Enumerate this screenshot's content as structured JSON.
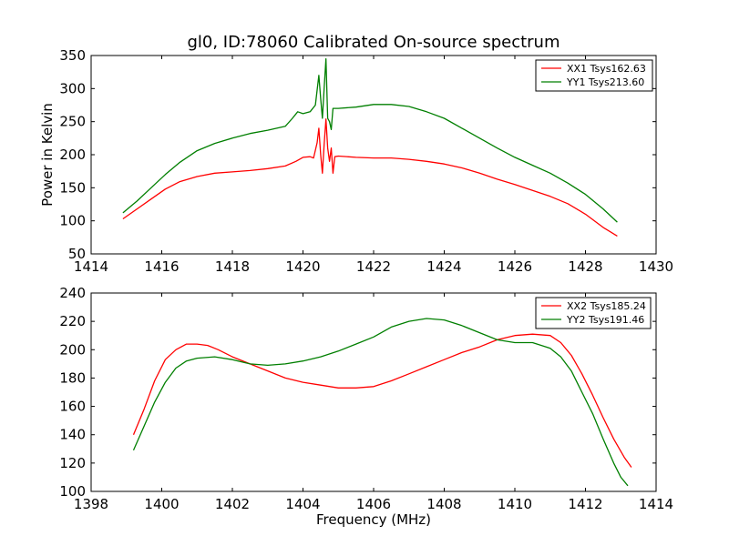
{
  "title": "gl0, ID:78060 Calibrated On-source spectrum",
  "chart_data": [
    {
      "type": "line",
      "ylabel": "Power in Kelvin",
      "xlabel": "",
      "xlim": [
        1414,
        1430
      ],
      "ylim": [
        50,
        350
      ],
      "xticks": [
        "1414",
        "1416",
        "1418",
        "1420",
        "1422",
        "1424",
        "1426",
        "1428",
        "1430"
      ],
      "yticks": [
        "50",
        "100",
        "150",
        "200",
        "250",
        "300",
        "350"
      ],
      "legend_position": "top-right",
      "grid": false,
      "series": [
        {
          "name": "XX1 Tsys162.63",
          "color": "#ff0000",
          "x": [
            1414.9,
            1415.3,
            1415.7,
            1416.1,
            1416.5,
            1417.0,
            1417.5,
            1418.0,
            1418.5,
            1419.0,
            1419.5,
            1419.8,
            1420.0,
            1420.2,
            1420.3,
            1420.4,
            1420.45,
            1420.5,
            1420.55,
            1420.6,
            1420.65,
            1420.7,
            1420.75,
            1420.8,
            1420.85,
            1420.9,
            1421.0,
            1421.5,
            1422.0,
            1422.5,
            1423.0,
            1423.5,
            1424.0,
            1424.5,
            1425.0,
            1425.5,
            1426.0,
            1426.5,
            1427.0,
            1427.5,
            1428.0,
            1428.5,
            1428.9
          ],
          "y": [
            103,
            118,
            133,
            148,
            159,
            167,
            172,
            174,
            176,
            179,
            183,
            190,
            196,
            197,
            195,
            218,
            240,
            200,
            172,
            215,
            254,
            210,
            190,
            210,
            172,
            197,
            198,
            196,
            195,
            195,
            193,
            190,
            186,
            180,
            172,
            163,
            155,
            146,
            137,
            126,
            110,
            90,
            77
          ]
        },
        {
          "name": "YY1 Tsys213.60",
          "color": "#007f00",
          "x": [
            1414.9,
            1415.3,
            1415.7,
            1416.1,
            1416.5,
            1417.0,
            1417.5,
            1418.0,
            1418.5,
            1419.0,
            1419.5,
            1419.7,
            1419.85,
            1420.0,
            1420.2,
            1420.35,
            1420.45,
            1420.5,
            1420.55,
            1420.6,
            1420.65,
            1420.7,
            1420.75,
            1420.8,
            1420.85,
            1420.9,
            1421.0,
            1421.5,
            1422.0,
            1422.5,
            1423.0,
            1423.5,
            1424.0,
            1424.5,
            1425.0,
            1425.5,
            1426.0,
            1426.5,
            1427.0,
            1427.5,
            1428.0,
            1428.5,
            1428.9
          ],
          "y": [
            112,
            130,
            150,
            170,
            188,
            206,
            217,
            225,
            232,
            237,
            243,
            255,
            265,
            262,
            265,
            275,
            320,
            285,
            255,
            300,
            345,
            255,
            250,
            238,
            270,
            270,
            270,
            272,
            276,
            276,
            273,
            265,
            255,
            240,
            225,
            210,
            196,
            184,
            172,
            157,
            140,
            118,
            98
          ]
        }
      ]
    },
    {
      "type": "line",
      "ylabel": "",
      "xlabel": "Frequency (MHz)",
      "xlim": [
        1398,
        1414
      ],
      "ylim": [
        100,
        240
      ],
      "xticks": [
        "1398",
        "1400",
        "1402",
        "1404",
        "1406",
        "1408",
        "1410",
        "1412",
        "1414"
      ],
      "yticks": [
        "100",
        "120",
        "140",
        "160",
        "180",
        "200",
        "220",
        "240"
      ],
      "legend_position": "top-right",
      "grid": false,
      "series": [
        {
          "name": "XX2 Tsys185.24",
          "color": "#ff0000",
          "x": [
            1399.2,
            1399.5,
            1399.8,
            1400.1,
            1400.4,
            1400.7,
            1401.0,
            1401.3,
            1401.6,
            1402.0,
            1402.5,
            1403.0,
            1403.5,
            1404.0,
            1404.5,
            1405.0,
            1405.5,
            1406.0,
            1406.5,
            1407.0,
            1407.5,
            1408.0,
            1408.5,
            1409.0,
            1409.5,
            1410.0,
            1410.5,
            1411.0,
            1411.3,
            1411.6,
            1411.9,
            1412.2,
            1412.5,
            1412.8,
            1413.1,
            1413.3
          ],
          "y": [
            140,
            158,
            178,
            193,
            200,
            204,
            204,
            203,
            200,
            195,
            190,
            185,
            180,
            177,
            175,
            173,
            173,
            174,
            178,
            183,
            188,
            193,
            198,
            202,
            207,
            210,
            211,
            210,
            205,
            196,
            183,
            168,
            152,
            137,
            124,
            117
          ]
        },
        {
          "name": "YY2 Tsys191.46",
          "color": "#007f00",
          "x": [
            1399.2,
            1399.5,
            1399.8,
            1400.1,
            1400.4,
            1400.7,
            1401.0,
            1401.5,
            1402.0,
            1402.5,
            1403.0,
            1403.5,
            1404.0,
            1404.5,
            1405.0,
            1405.5,
            1406.0,
            1406.5,
            1407.0,
            1407.5,
            1408.0,
            1408.5,
            1409.0,
            1409.5,
            1410.0,
            1410.5,
            1411.0,
            1411.3,
            1411.6,
            1411.9,
            1412.2,
            1412.5,
            1412.8,
            1413.0,
            1413.2
          ],
          "y": [
            129,
            146,
            163,
            177,
            187,
            192,
            194,
            195,
            193,
            190,
            189,
            190,
            192,
            195,
            199,
            204,
            209,
            216,
            220,
            222,
            221,
            217,
            212,
            207,
            205,
            205,
            201,
            195,
            185,
            170,
            155,
            137,
            120,
            110,
            104
          ]
        }
      ]
    }
  ]
}
